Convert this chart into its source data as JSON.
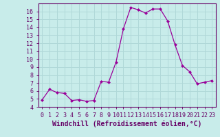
{
  "x": [
    0,
    1,
    2,
    3,
    4,
    5,
    6,
    7,
    8,
    9,
    10,
    11,
    12,
    13,
    14,
    15,
    16,
    17,
    18,
    19,
    20,
    21,
    22,
    23
  ],
  "y": [
    4.9,
    6.2,
    5.8,
    5.7,
    4.8,
    4.9,
    4.7,
    4.8,
    7.2,
    7.1,
    9.6,
    13.8,
    16.5,
    16.2,
    15.8,
    16.3,
    16.3,
    14.8,
    11.8,
    9.2,
    8.4,
    6.9,
    7.1,
    7.3
  ],
  "line_color": "#990099",
  "marker": "D",
  "marker_size": 2.5,
  "bg_color": "#c8ecea",
  "grid_color": "#b0d8d8",
  "xlabel": "Windchill (Refroidissement éolien,°C)",
  "ylim": [
    4,
    17
  ],
  "xlim": [
    -0.5,
    23.5
  ],
  "yticks": [
    4,
    5,
    6,
    7,
    8,
    9,
    10,
    11,
    12,
    13,
    14,
    15,
    16
  ],
  "xticks": [
    0,
    1,
    2,
    3,
    4,
    5,
    6,
    7,
    8,
    9,
    10,
    11,
    12,
    13,
    14,
    15,
    16,
    17,
    18,
    19,
    20,
    21,
    22,
    23
  ],
  "tick_label_fontsize": 6.0,
  "xlabel_fontsize": 7.0,
  "line_color_dark": "#660066",
  "spine_color": "#660066"
}
